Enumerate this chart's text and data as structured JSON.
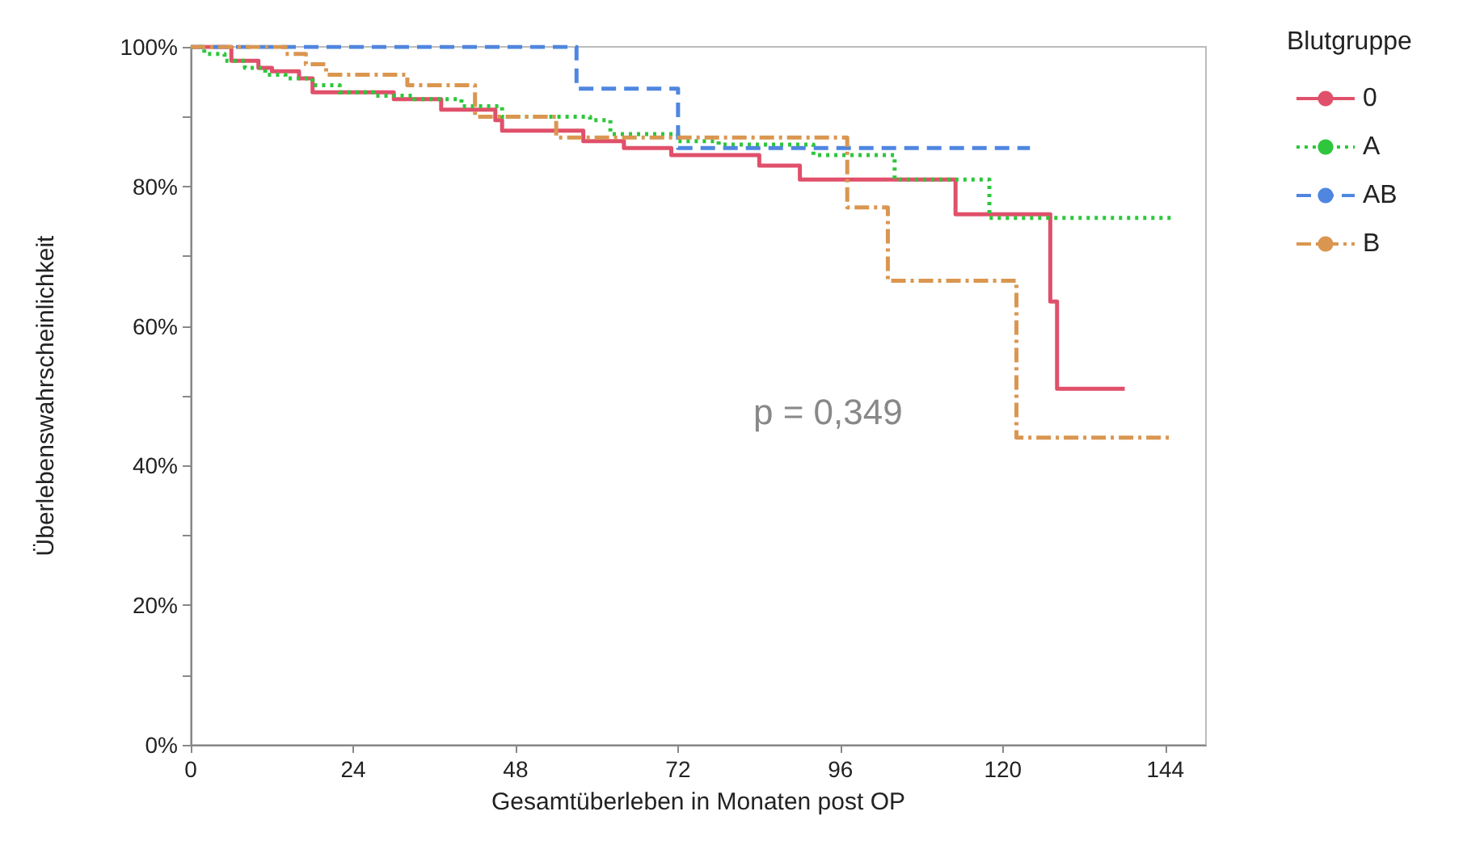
{
  "chart_data": {
    "type": "step",
    "xlabel": "Gesamtüberleben in Monaten post OP",
    "ylabel": "Überlebenswahrscheinlichkeit",
    "legend_title": "Blutgruppe",
    "legend": "right",
    "grid": false,
    "marker": "none",
    "annotations": [
      "p = 0,349"
    ],
    "xlim": [
      0,
      150
    ],
    "xticks": [
      0,
      24,
      48,
      72,
      96,
      120,
      144
    ],
    "ylim": [
      0,
      100
    ],
    "yticks": [
      {
        "value": 0,
        "label": "0%"
      },
      {
        "value": 10,
        "label": null
      },
      {
        "value": 20,
        "label": "20%"
      },
      {
        "value": 30,
        "label": null
      },
      {
        "value": 40,
        "label": "40%"
      },
      {
        "value": 50,
        "label": null
      },
      {
        "value": 60,
        "label": "60%"
      },
      {
        "value": 70,
        "label": null
      },
      {
        "value": 80,
        "label": "80%"
      },
      {
        "value": 90,
        "label": null
      },
      {
        "value": 100,
        "label": "100%"
      }
    ],
    "series": [
      {
        "name": "0",
        "color": "#e0506a",
        "line_style": "solid",
        "x": [
          0,
          6,
          10,
          12,
          16,
          18,
          30,
          37,
          45,
          46,
          58,
          64,
          71,
          84,
          90,
          113,
          127,
          128,
          138
        ],
        "values": [
          100,
          98,
          97,
          96.5,
          95.5,
          93.5,
          92.5,
          91,
          89.5,
          88,
          86.5,
          85.5,
          84.5,
          83,
          81,
          76,
          63.5,
          51,
          51
        ]
      },
      {
        "name": "A",
        "color": "#2ec63c",
        "line_style": "dotted",
        "x": [
          0,
          2,
          5,
          8,
          11,
          14,
          18,
          22,
          27,
          33,
          40,
          46,
          59,
          62,
          72,
          78,
          92,
          104,
          118,
          145
        ],
        "values": [
          100,
          99,
          98,
          97,
          96,
          95.5,
          94.5,
          93.5,
          93,
          92.5,
          91.5,
          90,
          89.5,
          87.5,
          86.5,
          86,
          84.5,
          81,
          75.5,
          75.5
        ]
      },
      {
        "name": "AB",
        "color": "#4f86e0",
        "line_style": "dashed",
        "x": [
          0,
          57,
          72,
          124
        ],
        "values": [
          100,
          94,
          85.5,
          85.5
        ]
      },
      {
        "name": "B",
        "color": "#da9650",
        "line_style": "dashdot",
        "x": [
          0,
          14,
          17,
          20,
          32,
          42,
          54,
          97,
          103,
          122,
          145
        ],
        "values": [
          100,
          99,
          97.5,
          96,
          94.5,
          90,
          87,
          77,
          66.5,
          44,
          44
        ]
      }
    ]
  }
}
